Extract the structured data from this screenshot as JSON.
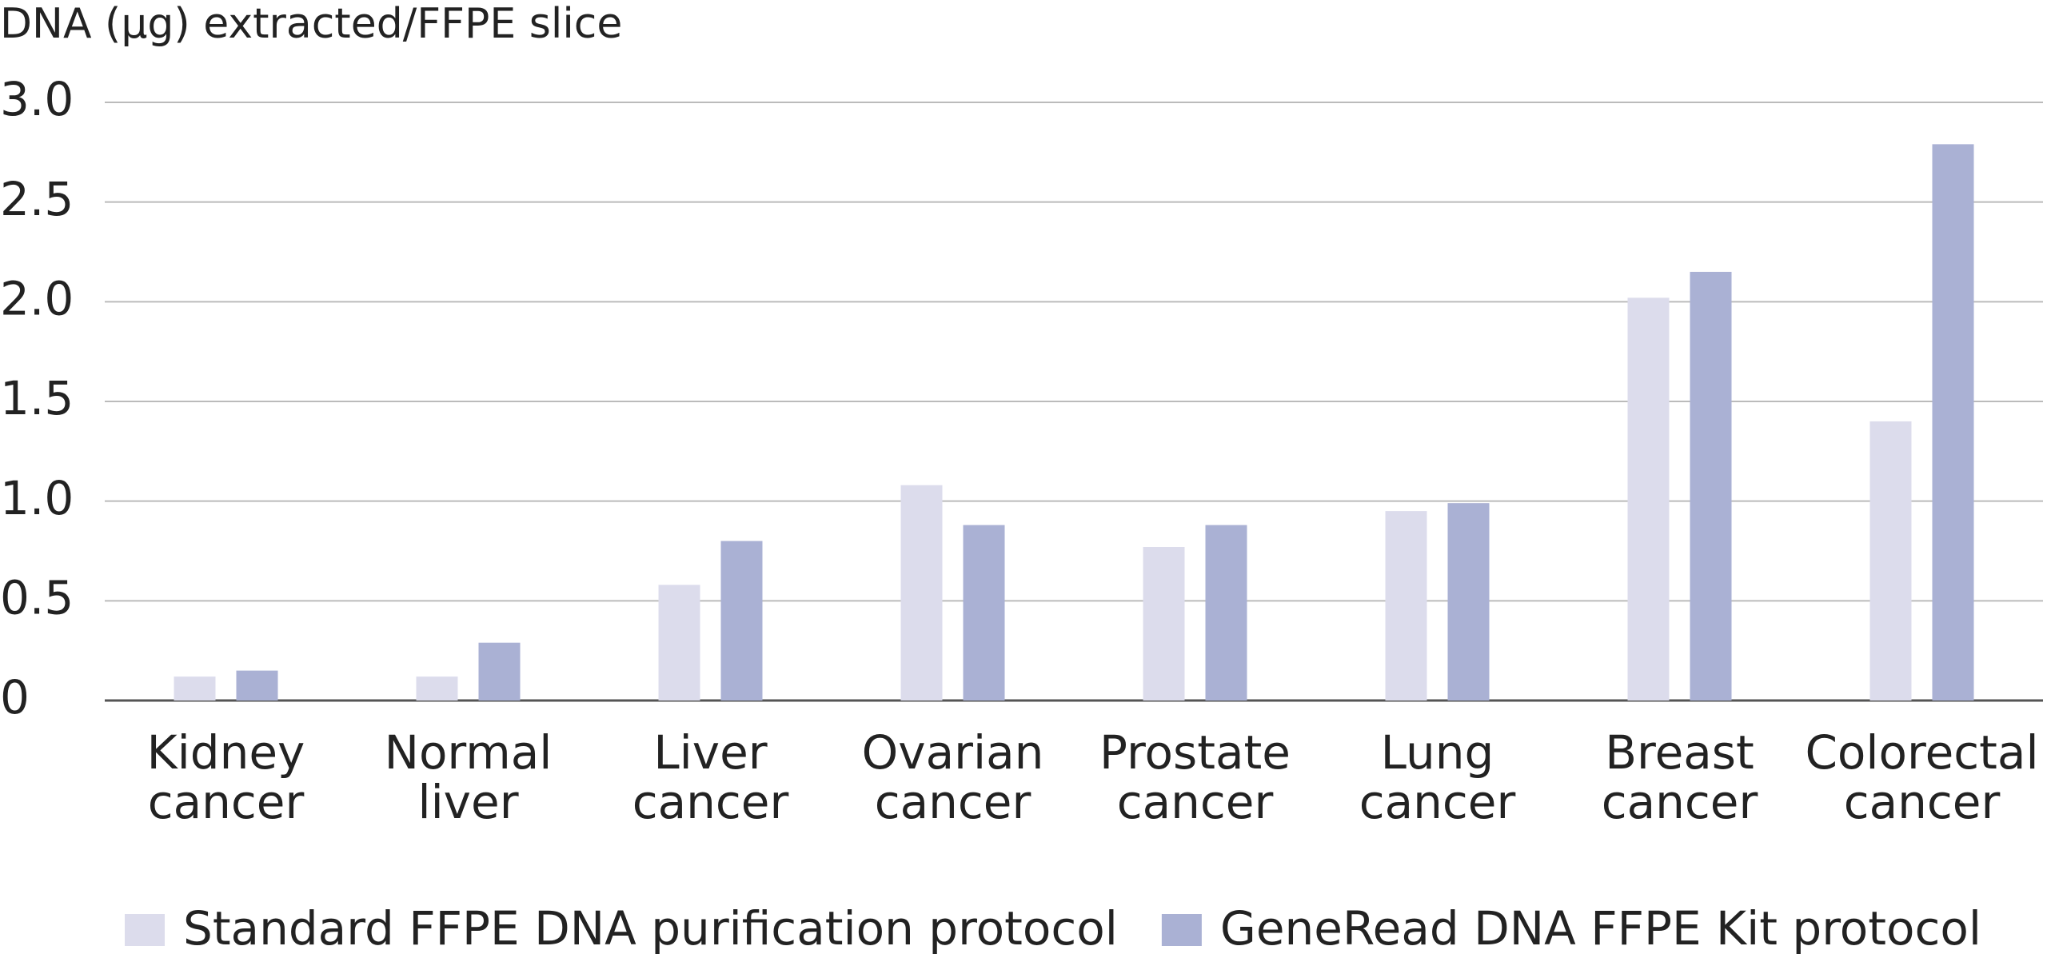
{
  "chart_data": {
    "type": "bar",
    "y_axis_label": "DNA (µg) extracted/FFPE slice",
    "categories": [
      [
        "Kidney",
        "cancer"
      ],
      [
        "Normal",
        "liver"
      ],
      [
        "Liver",
        "cancer"
      ],
      [
        "Ovarian",
        "cancer"
      ],
      [
        "Prostate",
        "cancer"
      ],
      [
        "Lung",
        "cancer"
      ],
      [
        "Breast",
        "cancer"
      ],
      [
        "Colorectal",
        "cancer"
      ]
    ],
    "series": [
      {
        "name": "Standard FFPE DNA purification protocol",
        "color": "#dcdcec",
        "values": [
          0.12,
          0.12,
          0.58,
          1.08,
          0.77,
          0.95,
          2.02,
          1.4
        ]
      },
      {
        "name": "GeneRead DNA FFPE Kit protocol",
        "color": "#aab1d4",
        "values": [
          0.15,
          0.29,
          0.8,
          0.88,
          0.88,
          0.99,
          2.15,
          2.79
        ]
      }
    ],
    "ylim": [
      0,
      3
    ],
    "yticks": [
      0,
      {
        "value": 0.5,
        "label": "0.5"
      },
      {
        "value": 1,
        "label": "1.0"
      },
      {
        "value": 1.5,
        "label": "1.5"
      },
      {
        "value": 2,
        "label": "2.0"
      },
      {
        "value": 2.5,
        "label": "2.5"
      },
      {
        "value": 3,
        "label": "3.0"
      }
    ],
    "grid": true,
    "legend": "bottom"
  }
}
